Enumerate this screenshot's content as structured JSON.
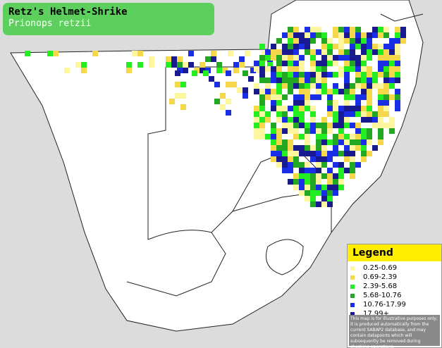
{
  "header": {
    "title": "Retz's Helmet-Shrike",
    "subtitle": "Prionops retzii"
  },
  "legend": {
    "title": "Legend",
    "items": [
      {
        "label": "0.25-0.69",
        "color": "#fff6a0"
      },
      {
        "label": "0.69-2.39",
        "color": "#f5d94a"
      },
      {
        "label": "2.39-5.68",
        "color": "#22ee22"
      },
      {
        "label": "5.68-10.76",
        "color": "#22a822"
      },
      {
        "label": "10.76-17.99",
        "color": "#1a2ee8"
      },
      {
        "label": "17.99+",
        "color": "#1a1a90"
      }
    ],
    "disclaimer": "This map is for illustrative purposes only; it is produced automatically from the current SABAP2 database, and may contain datapoints which will subsequently be removed during checking operations."
  }
}
